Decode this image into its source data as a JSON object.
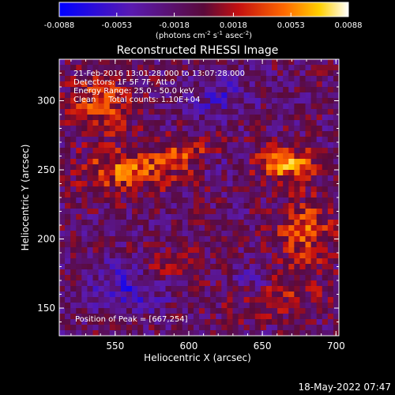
{
  "chart_data": {
    "type": "heatmap",
    "title": "Reconstructed RHESSI Image",
    "xlabel": "Heliocentric X (arcsec)",
    "ylabel": "Heliocentric Y (arcsec)",
    "xlim": [
      512,
      702
    ],
    "ylim": [
      130,
      330
    ],
    "x_ticks": [
      550,
      600,
      650,
      700
    ],
    "y_ticks": [
      150,
      200,
      250,
      300
    ],
    "colorbar": {
      "range": [
        -0.0088,
        0.0088
      ],
      "ticks": [
        "-0.0088",
        "-0.0053",
        "-0.0018",
        "0.0018",
        "0.0053",
        "0.0088"
      ],
      "units_prefix": "(photons cm",
      "units_sup1": "-2",
      "units_mid1": " s",
      "units_sup2": "-1",
      "units_mid2": " asec",
      "units_sup3": "-2",
      "units_suffix": ")"
    },
    "annotations": [
      "21-Feb-2016 13:01:28.000 to 13:07:28.000",
      "Detectors: 1F 5F 7F, Att 0",
      "Energy Range: 25.0 - 50.0 keV",
      "Clean     Total counts: 1.10E+04"
    ],
    "peak_label": "Position of Peak = [667,254]",
    "peak": [
      667,
      254
    ]
  },
  "footer": {
    "timestamp": "18-May-2022 07:47"
  },
  "colors": {
    "background": "#000000",
    "text": "#ffffff"
  }
}
